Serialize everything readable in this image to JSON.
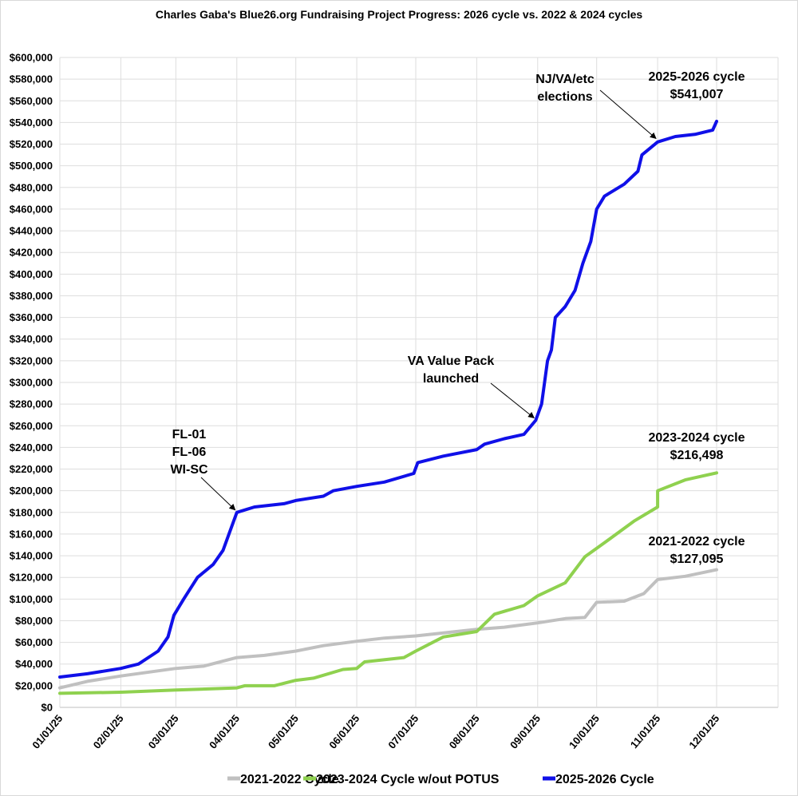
{
  "chart_data": {
    "type": "line",
    "title": "Charles Gaba's Blue26.org Fundraising Project Progress: 2026 cycle vs. 2022 & 2024 cycles",
    "xlabel": "",
    "ylabel": "",
    "ylim": [
      0,
      600000
    ],
    "y_ticks": [
      "$0",
      "$20,000",
      "$40,000",
      "$60,000",
      "$80,000",
      "$100,000",
      "$120,000",
      "$140,000",
      "$160,000",
      "$180,000",
      "$200,000",
      "$220,000",
      "$240,000",
      "$260,000",
      "$280,000",
      "$300,000",
      "$320,000",
      "$340,000",
      "$360,000",
      "$380,000",
      "$400,000",
      "$420,000",
      "$440,000",
      "$460,000",
      "$480,000",
      "$500,000",
      "$520,000",
      "$540,000",
      "$560,000",
      "$580,000",
      "$600,000"
    ],
    "x_ticks": [
      "01/01/25",
      "02/01/25",
      "03/01/25",
      "04/01/25",
      "05/01/25",
      "06/01/25",
      "07/01/25",
      "08/01/25",
      "09/01/25",
      "10/01/25",
      "11/01/25",
      "12/01/25"
    ],
    "grid": true,
    "legend_position": "bottom",
    "series": [
      {
        "name": "2021-2022 Cycle",
        "color": "#c0c0c0",
        "points": [
          [
            "01/01",
            18000
          ],
          [
            "01/15",
            24000
          ],
          [
            "02/01",
            29000
          ],
          [
            "03/01",
            36000
          ],
          [
            "03/15",
            38000
          ],
          [
            "04/01",
            46000
          ],
          [
            "04/15",
            48000
          ],
          [
            "05/01",
            52000
          ],
          [
            "05/15",
            57000
          ],
          [
            "06/01",
            61000
          ],
          [
            "06/15",
            64000
          ],
          [
            "07/01",
            66000
          ],
          [
            "08/01",
            72000
          ],
          [
            "08/15",
            74000
          ],
          [
            "09/01",
            78000
          ],
          [
            "09/15",
            82000
          ],
          [
            "09/25",
            83000
          ],
          [
            "10/01",
            97000
          ],
          [
            "10/15",
            98000
          ],
          [
            "10/25",
            105000
          ],
          [
            "11/01",
            118000
          ],
          [
            "11/15",
            121000
          ],
          [
            "12/01",
            127095
          ]
        ]
      },
      {
        "name": "2023-2024 Cycle w/out POTUS",
        "color": "#8fd14f",
        "points": [
          [
            "01/01",
            13000
          ],
          [
            "02/01",
            14000
          ],
          [
            "03/01",
            16000
          ],
          [
            "04/01",
            18000
          ],
          [
            "04/05",
            20000
          ],
          [
            "04/20",
            20000
          ],
          [
            "05/01",
            25000
          ],
          [
            "05/10",
            27000
          ],
          [
            "05/25",
            35000
          ],
          [
            "06/01",
            36000
          ],
          [
            "06/05",
            42000
          ],
          [
            "06/25",
            46000
          ],
          [
            "07/01",
            52000
          ],
          [
            "07/15",
            65000
          ],
          [
            "08/01",
            70000
          ],
          [
            "08/10",
            86000
          ],
          [
            "08/25",
            94000
          ],
          [
            "09/01",
            103000
          ],
          [
            "09/15",
            115000
          ],
          [
            "09/25",
            139000
          ],
          [
            "10/05",
            152000
          ],
          [
            "10/20",
            172000
          ],
          [
            "11/01",
            185000
          ],
          [
            "11/01",
            200000
          ],
          [
            "11/15",
            210000
          ],
          [
            "12/01",
            216498
          ]
        ]
      },
      {
        "name": "2025-2026 Cycle",
        "color": "#1010e8",
        "points": [
          [
            "01/01",
            28000
          ],
          [
            "01/15",
            31000
          ],
          [
            "02/01",
            36000
          ],
          [
            "02/10",
            40000
          ],
          [
            "02/20",
            52000
          ],
          [
            "02/25",
            65000
          ],
          [
            "02/28",
            85000
          ],
          [
            "03/05",
            100000
          ],
          [
            "03/12",
            120000
          ],
          [
            "03/20",
            132000
          ],
          [
            "03/25",
            145000
          ],
          [
            "03/28",
            160000
          ],
          [
            "04/01",
            180000
          ],
          [
            "04/10",
            185000
          ],
          [
            "04/25",
            188000
          ],
          [
            "05/01",
            191000
          ],
          [
            "05/15",
            195000
          ],
          [
            "05/20",
            200000
          ],
          [
            "06/01",
            204000
          ],
          [
            "06/15",
            208000
          ],
          [
            "06/30",
            216000
          ],
          [
            "07/02",
            226000
          ],
          [
            "07/15",
            232000
          ],
          [
            "08/01",
            238000
          ],
          [
            "08/05",
            243000
          ],
          [
            "08/15",
            248000
          ],
          [
            "08/25",
            252000
          ],
          [
            "08/31",
            265000
          ],
          [
            "09/03",
            280000
          ],
          [
            "09/06",
            320000
          ],
          [
            "09/08",
            330000
          ],
          [
            "09/10",
            360000
          ],
          [
            "09/15",
            370000
          ],
          [
            "09/20",
            385000
          ],
          [
            "09/24",
            410000
          ],
          [
            "09/28",
            430000
          ],
          [
            "10/01",
            460000
          ],
          [
            "10/05",
            472000
          ],
          [
            "10/15",
            483000
          ],
          [
            "10/22",
            495000
          ],
          [
            "10/24",
            510000
          ],
          [
            "11/01",
            522000
          ],
          [
            "11/10",
            527000
          ],
          [
            "11/20",
            529000
          ],
          [
            "11/29",
            533000
          ],
          [
            "12/01",
            541007
          ]
        ]
      }
    ],
    "annotations": [
      {
        "lines": [
          "FL-01",
          "FL-06",
          "WI-SC"
        ],
        "arrow_to": [
          "04/01",
          180000
        ]
      },
      {
        "lines": [
          "VA Value Pack",
          "launched"
        ],
        "arrow_to": [
          "08/31",
          265000
        ]
      },
      {
        "lines": [
          "NJ/VA/etc",
          "elections"
        ],
        "arrow_to": [
          "11/01",
          523000
        ]
      },
      {
        "lines": [
          "2025-2026 cycle",
          "$541,007"
        ]
      },
      {
        "lines": [
          "2023-2024 cycle",
          "$216,498"
        ]
      },
      {
        "lines": [
          "2021-2022 cycle",
          "$127,095"
        ]
      }
    ]
  }
}
